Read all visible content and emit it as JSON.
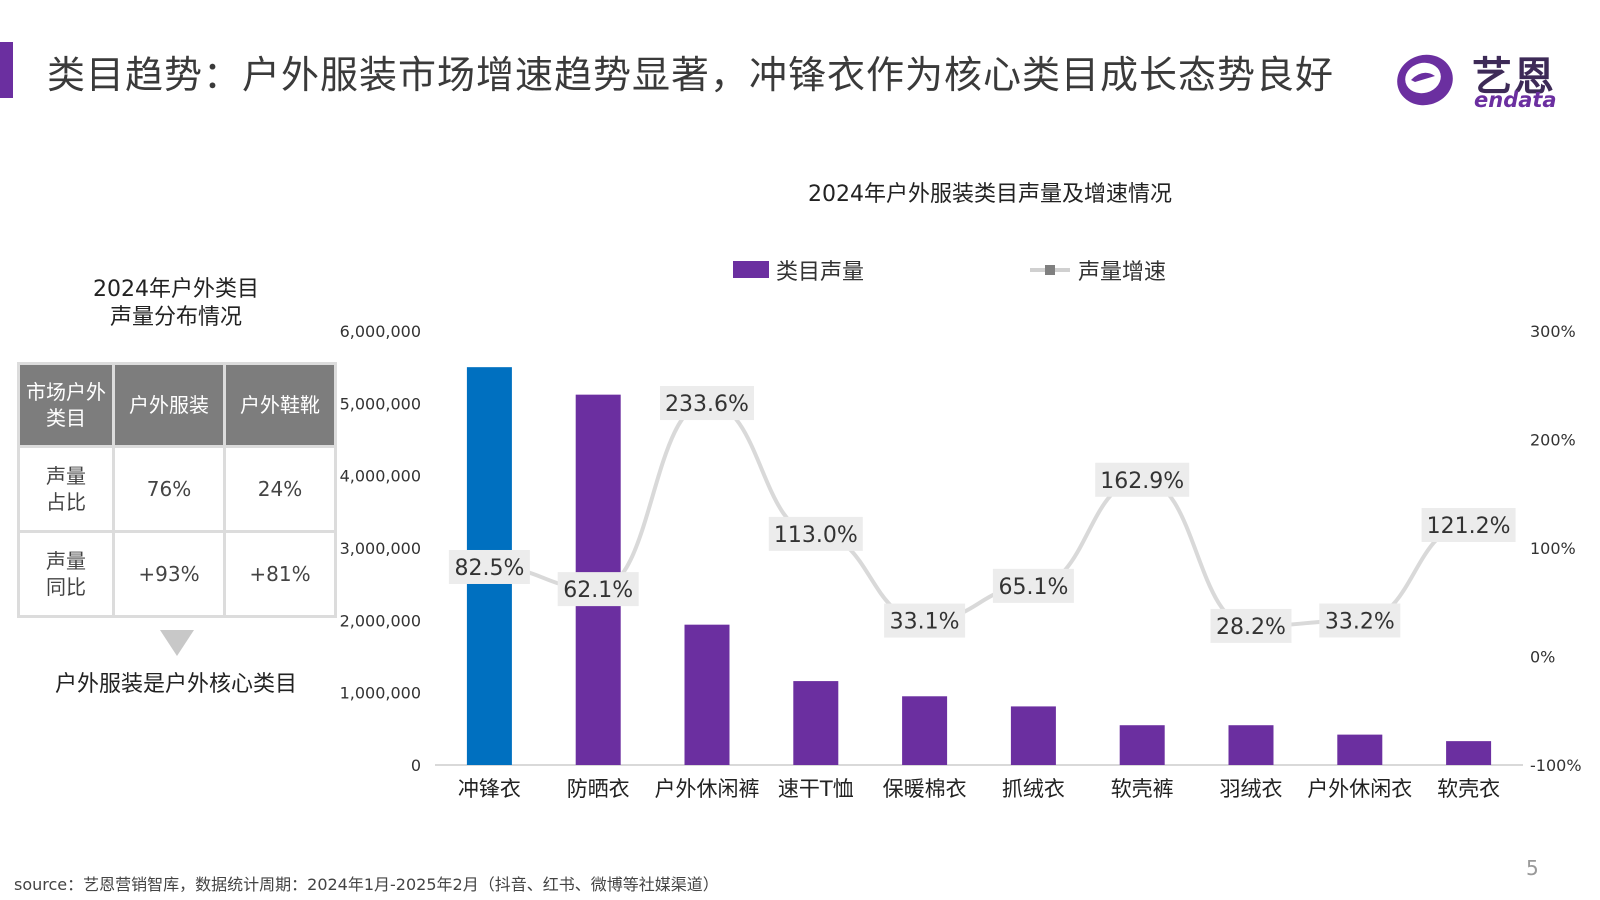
{
  "header": {
    "title": "类目趋势：户外服装市场增速趋势显著，冲锋衣作为核心类目成长态势良好",
    "logo_cn": "艺恩",
    "logo_en": "endata",
    "accent_color": "#6b2fa0"
  },
  "left_panel": {
    "title_line1": "2024年户外类目",
    "title_line2": "声量分布情况",
    "table": {
      "headers": [
        "市场户外类目",
        "户外服装",
        "户外鞋靴"
      ],
      "rows": [
        {
          "label": "声量占比",
          "values": [
            "76%",
            "24%"
          ]
        },
        {
          "label": "声量同比",
          "values": [
            "+93%",
            "+81%"
          ]
        }
      ]
    },
    "conclusion": "户外服装是户外核心类目"
  },
  "chart_data": {
    "type": "bar",
    "title": "2024年户外服装类目声量及增速情况",
    "categories": [
      "冲锋衣",
      "防晒衣",
      "户外休闲裤",
      "速干T恤",
      "保暖棉衣",
      "抓绒衣",
      "软壳裤",
      "羽绒衣",
      "户外休闲衣",
      "软壳衣"
    ],
    "series": [
      {
        "name": "类目声量",
        "type": "bar",
        "axis": "left",
        "values": [
          5500000,
          5120000,
          1940000,
          1160000,
          950000,
          810000,
          550000,
          550000,
          420000,
          330000
        ],
        "colors": [
          "#0070c0",
          "#6b2fa0",
          "#6b2fa0",
          "#6b2fa0",
          "#6b2fa0",
          "#6b2fa0",
          "#6b2fa0",
          "#6b2fa0",
          "#6b2fa0",
          "#6b2fa0"
        ]
      },
      {
        "name": "声量增速",
        "type": "line",
        "axis": "right",
        "values": [
          82.5,
          62.1,
          233.6,
          113.0,
          33.1,
          65.1,
          162.9,
          28.2,
          33.2,
          121.2
        ],
        "labels": [
          "82.5%",
          "62.1%",
          "233.6%",
          "113.0%",
          "33.1%",
          "65.1%",
          "162.9%",
          "28.2%",
          "33.2%",
          "121.2%"
        ],
        "color": "#d9d9d9"
      }
    ],
    "y_left": {
      "ylim": [
        0,
        6000000
      ],
      "ticks": [
        0,
        1000000,
        2000000,
        3000000,
        4000000,
        5000000,
        6000000
      ],
      "tick_labels": [
        "0",
        "1,000,000",
        "2,000,000",
        "3,000,000",
        "4,000,000",
        "5,000,000",
        "6,000,000"
      ]
    },
    "y_right": {
      "ylim": [
        -100,
        300
      ],
      "ticks": [
        -100,
        0,
        100,
        200,
        300
      ],
      "tick_labels": [
        "-100%",
        "0%",
        "100%",
        "200%",
        "300%"
      ]
    },
    "legend": {
      "placement": "top",
      "bar_label": "类目声量",
      "line_label": "声量增速"
    },
    "grid": false
  },
  "footer": {
    "page_number": "5",
    "source": "source：艺恩营销智库，数据统计周期：2024年1月-2025年2月（抖音、红书、微博等社媒渠道）"
  }
}
